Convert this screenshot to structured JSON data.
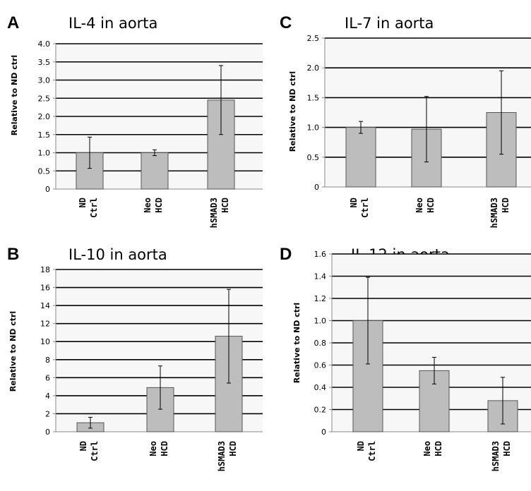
{
  "colors": {
    "bar": "#bdbdbd",
    "bar_stroke": "#555555",
    "gridline": "#000000",
    "plot_bg": "#f7f7f7"
  },
  "chart_data": [
    {
      "panel": "A",
      "type": "bar",
      "title": "IL-4 in aorta",
      "ylabel": "Relative to ND ctrl",
      "categories": [
        [
          "ND",
          "Ctrl"
        ],
        [
          "Neo",
          "HCD"
        ],
        [
          "hSMAD3",
          "HCD"
        ]
      ],
      "values": [
        1.0,
        1.0,
        2.45
      ],
      "error": [
        0.43,
        0.08,
        0.95
      ],
      "ylim": [
        0,
        4.0
      ],
      "yticks": [
        "0",
        "0.5",
        "1.0",
        "1.5",
        "2.0",
        "2.5",
        "3.0",
        "3.5",
        "4.0"
      ],
      "grid": true
    },
    {
      "panel": "C",
      "type": "bar",
      "title": "IL-7 in aorta",
      "ylabel": "Relative to ND ctrl",
      "categories": [
        [
          "ND",
          "Ctrl"
        ],
        [
          "Neo",
          "HCD"
        ],
        [
          "hSMAD3",
          "HCD"
        ]
      ],
      "values": [
        1.0,
        0.97,
        1.25
      ],
      "error": [
        0.1,
        0.55,
        0.7
      ],
      "ylim": [
        0,
        2.5
      ],
      "yticks": [
        "0",
        "0.5",
        "1.0",
        "1.5",
        "2.0",
        "2.5"
      ],
      "grid": true
    },
    {
      "panel": "B",
      "type": "bar",
      "title": "IL-10 in aorta",
      "ylabel": "Relative to ND ctrl",
      "categories": [
        [
          "ND",
          "Ctrl"
        ],
        [
          "Neo",
          "HCD"
        ],
        [
          "hSMAD3",
          "HCD"
        ]
      ],
      "values": [
        1.0,
        4.9,
        10.6
      ],
      "error": [
        0.6,
        2.4,
        5.2
      ],
      "ylim": [
        0,
        18
      ],
      "yticks": [
        "0",
        "2",
        "4",
        "6",
        "8",
        "10",
        "12",
        "14",
        "16",
        "18"
      ],
      "grid": true
    },
    {
      "panel": "D",
      "type": "bar",
      "title": "IL-12 in aorta",
      "ylabel": "Relative to ND ctrl",
      "categories": [
        [
          "ND",
          "Ctrl"
        ],
        [
          "Neo",
          "HCD"
        ],
        [
          "hSMAD3",
          "HCD"
        ]
      ],
      "values": [
        1.0,
        0.55,
        0.28
      ],
      "error": [
        0.39,
        0.12,
        0.21
      ],
      "ylim": [
        0,
        1.6
      ],
      "yticks": [
        "0",
        "0.2",
        "0.4",
        "0.6",
        "0.8",
        "1.0",
        "1.2",
        "1.4",
        "1.6"
      ],
      "grid": true
    }
  ]
}
